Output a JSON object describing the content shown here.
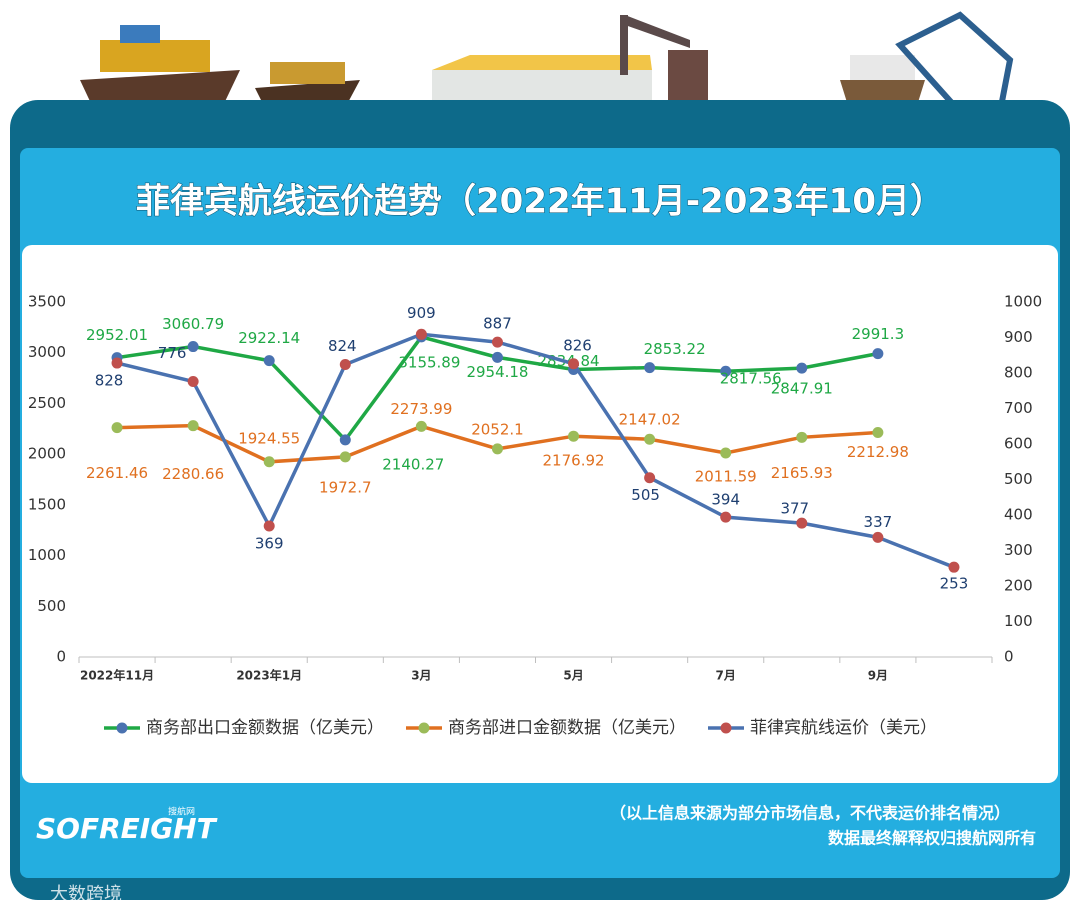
{
  "chart_data": {
    "type": "line",
    "title": "菲律宾航线运价趋势（2022年11月-2023年10月）",
    "categories": [
      "2022年11月",
      null,
      "2023年1月",
      null,
      "3月",
      null,
      "5月",
      null,
      "7月",
      null,
      "9月",
      null
    ],
    "series": [
      {
        "name": "商务部出口金额数据（亿美元）",
        "color": "#1fa845",
        "marker_color": "#4a72b0",
        "label_color": "#1fa845",
        "values": [
          2952.01,
          3060.79,
          2922.14,
          2140.27,
          3155.89,
          2954.18,
          2834.84,
          2853.22,
          2817.56,
          2847.91,
          2991.3,
          null
        ]
      },
      {
        "name": "商务部进口金额数据（亿美元）",
        "color": "#e07020",
        "marker_color": "#9bbb59",
        "label_color": "#e07020",
        "values": [
          2261.46,
          2280.66,
          1924.55,
          1972.7,
          2273.99,
          2052.1,
          2176.92,
          2147.02,
          2011.59,
          2165.93,
          2212.98,
          null
        ]
      },
      {
        "name": "菲律宾航线运价（美元）",
        "color": "#4a72b0",
        "marker_color": "#c0504d",
        "label_color": "#1f3f70",
        "axis": "y2",
        "values": [
          828,
          776,
          369,
          824,
          909,
          887,
          826,
          505,
          394,
          377,
          337,
          253
        ]
      }
    ],
    "ylim": [
      0,
      3500
    ],
    "yticks": [
      0,
      500,
      1000,
      1500,
      2000,
      2500,
      3000,
      3500
    ],
    "y2lim": [
      0,
      1000
    ],
    "y2ticks": [
      0,
      100,
      200,
      300,
      400,
      500,
      600,
      700,
      800,
      900,
      1000
    ],
    "grid": false,
    "legend": "bottom"
  },
  "footer": {
    "note": "（以上信息来源为部分市场信息，不代表运价排名情况）",
    "rights": "数据最终解释权归搜航网所有",
    "logo": "SOFREIGHT",
    "logo_sub": "搜航网",
    "watermark": "大数跨境"
  }
}
